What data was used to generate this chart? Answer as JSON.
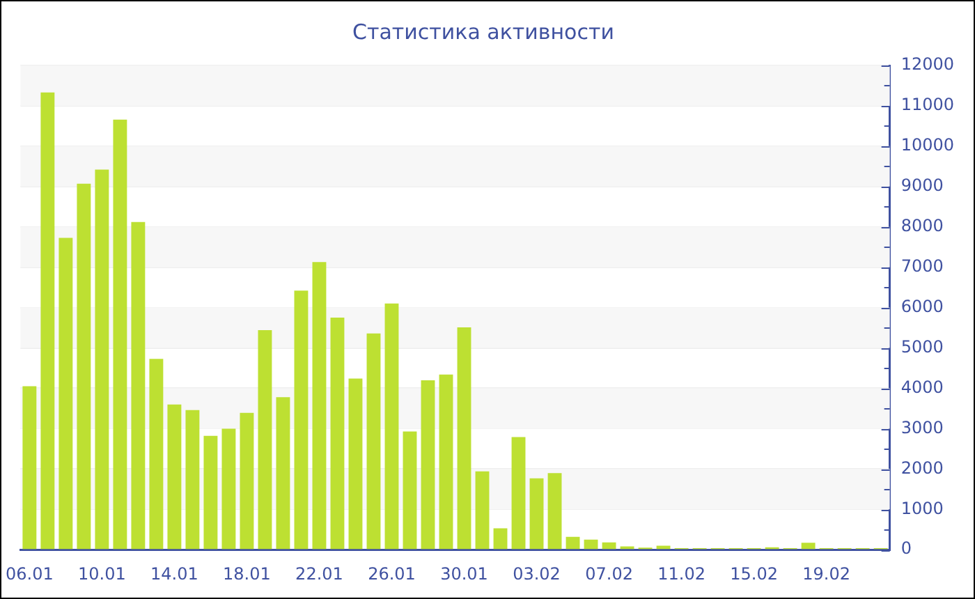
{
  "chart_data": {
    "type": "bar",
    "title": "Статистика активности",
    "categories": [
      "06.01",
      null,
      null,
      null,
      "10.01",
      null,
      null,
      null,
      "14.01",
      null,
      null,
      null,
      "18.01",
      null,
      null,
      null,
      "22.01",
      null,
      null,
      null,
      "26.01",
      null,
      null,
      null,
      "30.01",
      null,
      null,
      null,
      "03.02",
      null,
      null,
      null,
      "07.02",
      null,
      null,
      null,
      "11.02",
      null,
      null,
      null,
      "15.02",
      null,
      null,
      null,
      "19.02",
      null,
      null,
      null
    ],
    "values": [
      4050,
      11330,
      7730,
      9070,
      9420,
      10660,
      8120,
      4730,
      3600,
      3460,
      2820,
      3000,
      3390,
      5440,
      3780,
      6420,
      7130,
      5750,
      4240,
      5360,
      6100,
      2930,
      4200,
      4340,
      5510,
      1940,
      530,
      2790,
      1770,
      1900,
      320,
      250,
      180,
      80,
      50,
      100,
      40,
      40,
      40,
      40,
      40,
      60,
      40,
      170,
      40,
      40,
      40,
      40
    ],
    "color": "#bde032",
    "ylim": [
      0,
      12000
    ],
    "yticks": [
      0,
      {
        "value": 500,
        "label": null
      },
      1000,
      {
        "value": 1500,
        "label": null
      },
      2000,
      {
        "value": 2500,
        "label": null
      },
      3000,
      {
        "value": 3500,
        "label": null
      },
      4000,
      {
        "value": 4500,
        "label": null
      },
      5000,
      {
        "value": 5500,
        "label": null
      },
      6000,
      {
        "value": 6500,
        "label": null
      },
      7000,
      {
        "value": 7500,
        "label": null
      },
      8000,
      {
        "value": 8500,
        "label": null
      },
      9000,
      {
        "value": 9500,
        "label": null
      },
      10000,
      {
        "value": 10500,
        "label": null
      },
      11000,
      {
        "value": 11500,
        "label": null
      },
      12000
    ],
    "grid": true,
    "legend": false
  }
}
